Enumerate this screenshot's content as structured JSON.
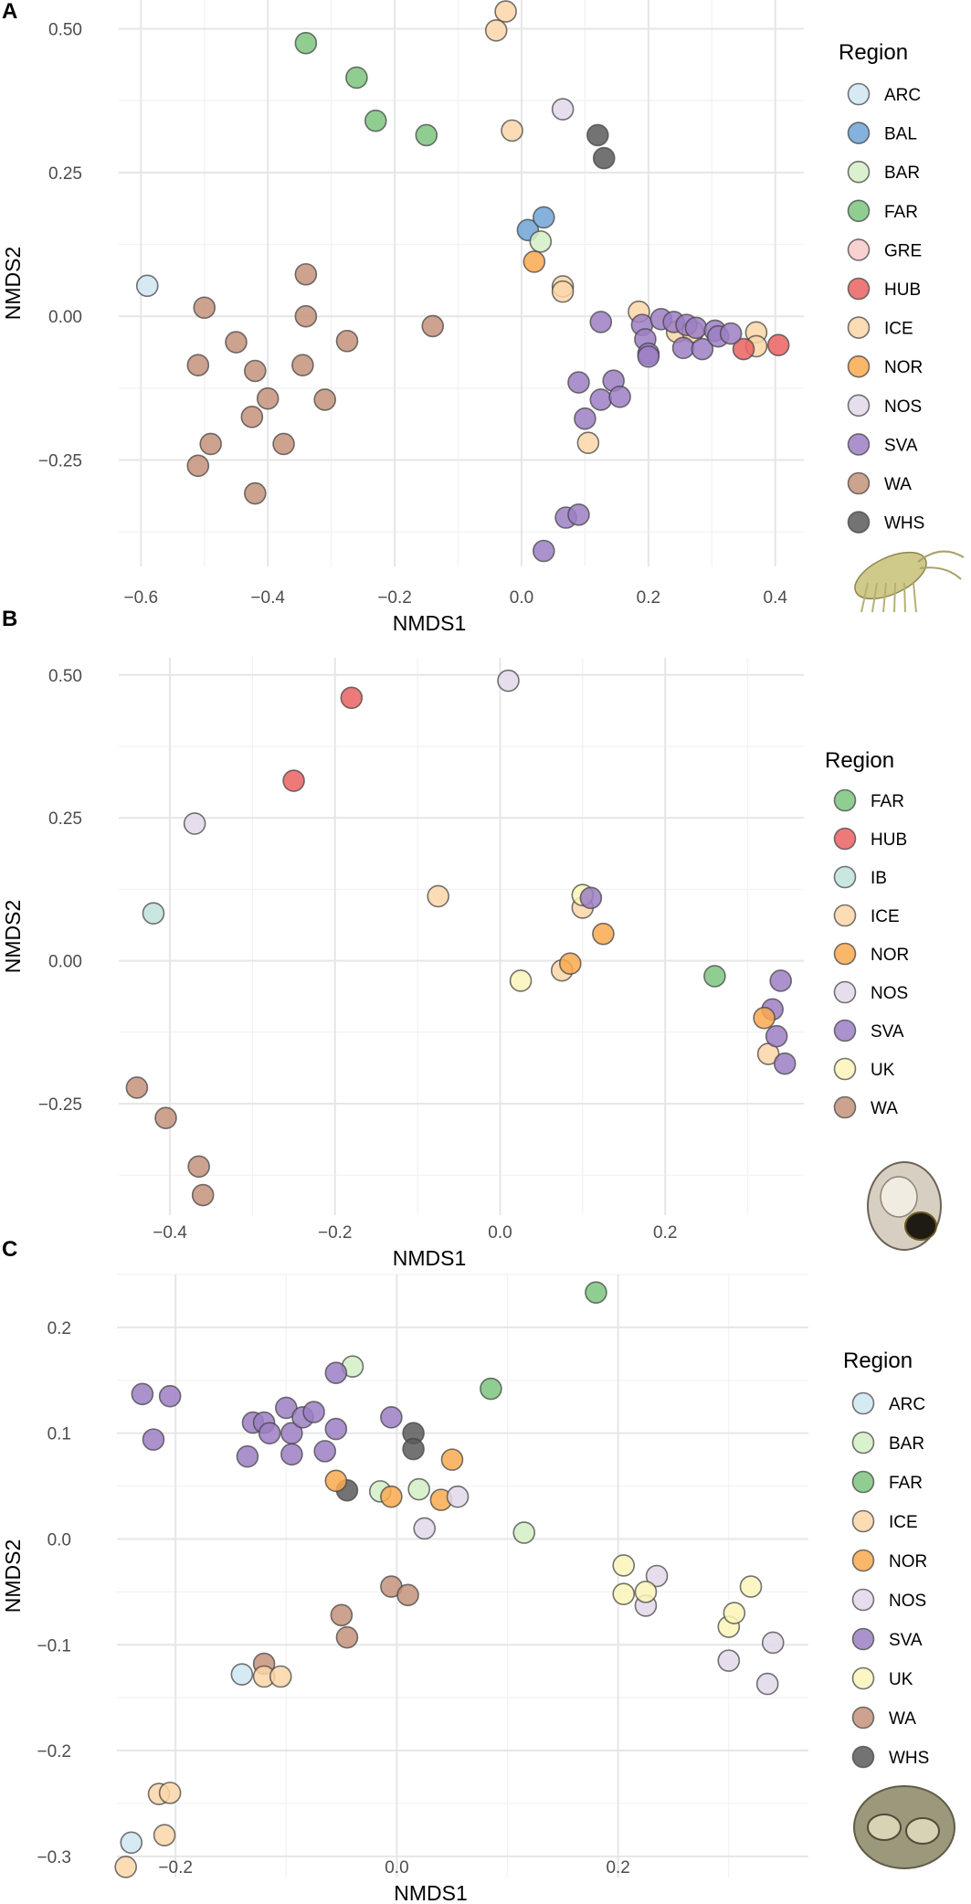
{
  "colors": {
    "ARC": "#cfe6f2",
    "BAL": "#6ea5d6",
    "BAR": "#d4efc5",
    "FAR": "#7cc47e",
    "GRE": "#f7c9c9",
    "HUB": "#ea6161",
    "ICE": "#fcd6a8",
    "NOR": "#f9a94f",
    "NOS": "#e3d8ea",
    "SVA": "#9c7fc4",
    "WA": "#c4927a",
    "WHS": "#5a5a5a",
    "IB": "#bfe3da",
    "UK": "#faf5b8"
  },
  "chart_data": [
    {
      "panel": "A",
      "type": "scatter",
      "xlabel": "NMDS1",
      "ylabel": "NMDS2",
      "xlim": [
        -0.635,
        0.445
      ],
      "ylim": [
        -0.435,
        0.55
      ],
      "xticks": [
        -0.6,
        -0.4,
        -0.2,
        0.0,
        0.2,
        0.4
      ],
      "xtick_labels": [
        "−0.6",
        "−0.4",
        "−0.2",
        "0.0",
        "0.2",
        "0.4"
      ],
      "yticks": [
        -0.25,
        0.0,
        0.25,
        0.5
      ],
      "ytick_labels": [
        "−0.25",
        "0.00",
        "0.25",
        "0.50"
      ],
      "legend_title": "Region",
      "legend": [
        "ARC",
        "BAL",
        "BAR",
        "FAR",
        "GRE",
        "HUB",
        "ICE",
        "NOR",
        "NOS",
        "SVA",
        "WA",
        "WHS"
      ],
      "image": "amphipod",
      "points": [
        {
          "region": "ARC",
          "x": -0.59,
          "y": 0.053
        },
        {
          "region": "FAR",
          "x": -0.34,
          "y": 0.475
        },
        {
          "region": "FAR",
          "x": -0.26,
          "y": 0.415
        },
        {
          "region": "FAR",
          "x": -0.23,
          "y": 0.34
        },
        {
          "region": "FAR",
          "x": -0.15,
          "y": 0.315
        },
        {
          "region": "ICE",
          "x": -0.025,
          "y": 0.53
        },
        {
          "region": "ICE",
          "x": -0.04,
          "y": 0.497
        },
        {
          "region": "ICE",
          "x": -0.015,
          "y": 0.323
        },
        {
          "region": "ICE",
          "x": 0.065,
          "y": 0.052
        },
        {
          "region": "ICE",
          "x": 0.065,
          "y": 0.043
        },
        {
          "region": "ICE",
          "x": 0.105,
          "y": -0.22
        },
        {
          "region": "ICE",
          "x": 0.185,
          "y": 0.008
        },
        {
          "region": "ICE",
          "x": 0.245,
          "y": -0.027
        },
        {
          "region": "ICE",
          "x": 0.27,
          "y": -0.027
        },
        {
          "region": "ICE",
          "x": 0.37,
          "y": -0.028
        },
        {
          "region": "ICE",
          "x": 0.37,
          "y": -0.052
        },
        {
          "region": "NOS",
          "x": 0.065,
          "y": 0.36
        },
        {
          "region": "WHS",
          "x": 0.12,
          "y": 0.315
        },
        {
          "region": "WHS",
          "x": 0.13,
          "y": 0.275
        },
        {
          "region": "BAL",
          "x": 0.01,
          "y": 0.15
        },
        {
          "region": "BAL",
          "x": 0.035,
          "y": 0.172
        },
        {
          "region": "BAR",
          "x": 0.03,
          "y": 0.13
        },
        {
          "region": "NOR",
          "x": 0.02,
          "y": 0.095
        },
        {
          "region": "HUB",
          "x": 0.35,
          "y": -0.057
        },
        {
          "region": "HUB",
          "x": 0.405,
          "y": -0.05
        },
        {
          "region": "SVA",
          "x": 0.125,
          "y": -0.01
        },
        {
          "region": "SVA",
          "x": 0.09,
          "y": -0.115
        },
        {
          "region": "SVA",
          "x": 0.125,
          "y": -0.145
        },
        {
          "region": "SVA",
          "x": 0.145,
          "y": -0.112
        },
        {
          "region": "SVA",
          "x": 0.155,
          "y": -0.14
        },
        {
          "region": "SVA",
          "x": 0.1,
          "y": -0.178
        },
        {
          "region": "SVA",
          "x": 0.07,
          "y": -0.35
        },
        {
          "region": "SVA",
          "x": 0.09,
          "y": -0.345
        },
        {
          "region": "SVA",
          "x": 0.035,
          "y": -0.408
        },
        {
          "region": "SVA",
          "x": 0.19,
          "y": -0.015
        },
        {
          "region": "SVA",
          "x": 0.195,
          "y": -0.04
        },
        {
          "region": "SVA",
          "x": 0.2,
          "y": -0.065
        },
        {
          "region": "SVA",
          "x": 0.2,
          "y": -0.07
        },
        {
          "region": "SVA",
          "x": 0.22,
          "y": -0.005
        },
        {
          "region": "SVA",
          "x": 0.24,
          "y": -0.01
        },
        {
          "region": "SVA",
          "x": 0.26,
          "y": -0.015
        },
        {
          "region": "SVA",
          "x": 0.275,
          "y": -0.02
        },
        {
          "region": "SVA",
          "x": 0.255,
          "y": -0.055
        },
        {
          "region": "SVA",
          "x": 0.285,
          "y": -0.057
        },
        {
          "region": "SVA",
          "x": 0.305,
          "y": -0.025
        },
        {
          "region": "SVA",
          "x": 0.31,
          "y": -0.035
        },
        {
          "region": "SVA",
          "x": 0.33,
          "y": -0.03
        },
        {
          "region": "WA",
          "x": -0.5,
          "y": 0.015
        },
        {
          "region": "WA",
          "x": -0.51,
          "y": -0.085
        },
        {
          "region": "WA",
          "x": -0.45,
          "y": -0.045
        },
        {
          "region": "WA",
          "x": -0.42,
          "y": -0.095
        },
        {
          "region": "WA",
          "x": -0.4,
          "y": -0.143
        },
        {
          "region": "WA",
          "x": -0.425,
          "y": -0.175
        },
        {
          "region": "WA",
          "x": -0.49,
          "y": -0.222
        },
        {
          "region": "WA",
          "x": -0.51,
          "y": -0.26
        },
        {
          "region": "WA",
          "x": -0.42,
          "y": -0.308
        },
        {
          "region": "WA",
          "x": -0.375,
          "y": -0.222
        },
        {
          "region": "WA",
          "x": -0.34,
          "y": 0.073
        },
        {
          "region": "WA",
          "x": -0.34,
          "y": 0.0
        },
        {
          "region": "WA",
          "x": -0.345,
          "y": -0.085
        },
        {
          "region": "WA",
          "x": -0.31,
          "y": -0.145
        },
        {
          "region": "WA",
          "x": -0.275,
          "y": -0.043
        },
        {
          "region": "WA",
          "x": -0.14,
          "y": -0.017
        }
      ]
    },
    {
      "panel": "B",
      "type": "scatter",
      "xlabel": "NMDS1",
      "ylabel": "NMDS2",
      "xlim": [
        -0.462,
        0.368
      ],
      "ylim": [
        -0.445,
        0.53
      ],
      "xticks": [
        -0.4,
        -0.2,
        0.0,
        0.2
      ],
      "xtick_labels": [
        "−0.4",
        "−0.2",
        "0.0",
        "0.2"
      ],
      "yticks": [
        -0.25,
        0.0,
        0.25,
        0.5
      ],
      "ytick_labels": [
        "−0.25",
        "0.00",
        "0.25",
        "0.50"
      ],
      "legend_title": "Region",
      "legend": [
        "FAR",
        "HUB",
        "IB",
        "ICE",
        "NOR",
        "NOS",
        "SVA",
        "UK",
        "WA"
      ],
      "image": "snail",
      "points": [
        {
          "region": "HUB",
          "x": -0.18,
          "y": 0.46
        },
        {
          "region": "HUB",
          "x": -0.25,
          "y": 0.315
        },
        {
          "region": "NOS",
          "x": 0.01,
          "y": 0.49
        },
        {
          "region": "NOS",
          "x": -0.37,
          "y": 0.24
        },
        {
          "region": "IB",
          "x": -0.42,
          "y": 0.083
        },
        {
          "region": "ICE",
          "x": -0.075,
          "y": 0.113
        },
        {
          "region": "ICE",
          "x": 0.1,
          "y": 0.093
        },
        {
          "region": "ICE",
          "x": 0.075,
          "y": -0.017
        },
        {
          "region": "ICE",
          "x": 0.325,
          "y": -0.163
        },
        {
          "region": "UK",
          "x": 0.1,
          "y": 0.115
        },
        {
          "region": "UK",
          "x": 0.025,
          "y": -0.035
        },
        {
          "region": "SVA",
          "x": 0.11,
          "y": 0.11
        },
        {
          "region": "SVA",
          "x": 0.34,
          "y": -0.035
        },
        {
          "region": "SVA",
          "x": 0.33,
          "y": -0.085
        },
        {
          "region": "SVA",
          "x": 0.335,
          "y": -0.132
        },
        {
          "region": "SVA",
          "x": 0.345,
          "y": -0.18
        },
        {
          "region": "NOR",
          "x": 0.125,
          "y": 0.047
        },
        {
          "region": "NOR",
          "x": 0.085,
          "y": -0.005
        },
        {
          "region": "NOR",
          "x": 0.32,
          "y": -0.1
        },
        {
          "region": "FAR",
          "x": 0.26,
          "y": -0.027
        },
        {
          "region": "WA",
          "x": -0.44,
          "y": -0.222
        },
        {
          "region": "WA",
          "x": -0.405,
          "y": -0.275
        },
        {
          "region": "WA",
          "x": -0.365,
          "y": -0.36
        },
        {
          "region": "WA",
          "x": -0.36,
          "y": -0.41
        }
      ]
    },
    {
      "panel": "C",
      "type": "scatter",
      "xlabel": "NMDS1",
      "ylabel": "NMDS2",
      "xlim": [
        -0.253,
        0.372
      ],
      "ylim": [
        -0.32,
        0.25
      ],
      "xticks": [
        -0.2,
        0.0,
        0.2
      ],
      "xtick_labels": [
        "−0.2",
        "0.0",
        "0.2"
      ],
      "yticks": [
        -0.3,
        -0.2,
        -0.1,
        0.0,
        0.1,
        0.2
      ],
      "ytick_labels": [
        "−0.3",
        "−0.2",
        "−0.1",
        "0.0",
        "0.1",
        "0.2"
      ],
      "legend_title": "Region",
      "legend": [
        "ARC",
        "BAR",
        "FAR",
        "ICE",
        "NOR",
        "NOS",
        "SVA",
        "UK",
        "WA",
        "WHS"
      ],
      "image": "barnacle",
      "points": [
        {
          "region": "FAR",
          "x": 0.18,
          "y": 0.233
        },
        {
          "region": "FAR",
          "x": 0.085,
          "y": 0.142
        },
        {
          "region": "BAR",
          "x": -0.04,
          "y": 0.163
        },
        {
          "region": "BAR",
          "x": -0.015,
          "y": 0.045
        },
        {
          "region": "BAR",
          "x": 0.02,
          "y": 0.047
        },
        {
          "region": "BAR",
          "x": 0.115,
          "y": 0.006
        },
        {
          "region": "SVA",
          "x": -0.23,
          "y": 0.137
        },
        {
          "region": "SVA",
          "x": -0.205,
          "y": 0.135
        },
        {
          "region": "SVA",
          "x": -0.22,
          "y": 0.094
        },
        {
          "region": "SVA",
          "x": -0.055,
          "y": 0.157
        },
        {
          "region": "SVA",
          "x": -0.13,
          "y": 0.11
        },
        {
          "region": "SVA",
          "x": -0.12,
          "y": 0.11
        },
        {
          "region": "SVA",
          "x": -0.115,
          "y": 0.1
        },
        {
          "region": "SVA",
          "x": -0.1,
          "y": 0.124
        },
        {
          "region": "SVA",
          "x": -0.095,
          "y": 0.1
        },
        {
          "region": "SVA",
          "x": -0.085,
          "y": 0.115
        },
        {
          "region": "SVA",
          "x": -0.075,
          "y": 0.12
        },
        {
          "region": "SVA",
          "x": -0.055,
          "y": 0.104
        },
        {
          "region": "SVA",
          "x": -0.135,
          "y": 0.078
        },
        {
          "region": "SVA",
          "x": -0.095,
          "y": 0.08
        },
        {
          "region": "SVA",
          "x": -0.065,
          "y": 0.083
        },
        {
          "region": "SVA",
          "x": -0.005,
          "y": 0.115
        },
        {
          "region": "WHS",
          "x": 0.015,
          "y": 0.1
        },
        {
          "region": "WHS",
          "x": 0.015,
          "y": 0.085
        },
        {
          "region": "WHS",
          "x": -0.045,
          "y": 0.046
        },
        {
          "region": "NOR",
          "x": -0.055,
          "y": 0.055
        },
        {
          "region": "NOR",
          "x": -0.005,
          "y": 0.04
        },
        {
          "region": "NOR",
          "x": 0.05,
          "y": 0.075
        },
        {
          "region": "NOR",
          "x": 0.04,
          "y": 0.037
        },
        {
          "region": "NOS",
          "x": 0.055,
          "y": 0.04
        },
        {
          "region": "NOS",
          "x": 0.025,
          "y": 0.01
        },
        {
          "region": "NOS",
          "x": 0.235,
          "y": -0.035
        },
        {
          "region": "NOS",
          "x": 0.225,
          "y": -0.063
        },
        {
          "region": "NOS",
          "x": 0.3,
          "y": -0.115
        },
        {
          "region": "NOS",
          "x": 0.34,
          "y": -0.098
        },
        {
          "region": "NOS",
          "x": 0.335,
          "y": -0.137
        },
        {
          "region": "UK",
          "x": 0.205,
          "y": -0.025
        },
        {
          "region": "UK",
          "x": 0.205,
          "y": -0.052
        },
        {
          "region": "UK",
          "x": 0.225,
          "y": -0.05
        },
        {
          "region": "UK",
          "x": 0.3,
          "y": -0.083
        },
        {
          "region": "UK",
          "x": 0.305,
          "y": -0.07
        },
        {
          "region": "UK",
          "x": 0.32,
          "y": -0.045
        },
        {
          "region": "WA",
          "x": -0.005,
          "y": -0.045
        },
        {
          "region": "WA",
          "x": 0.01,
          "y": -0.053
        },
        {
          "region": "WA",
          "x": -0.05,
          "y": -0.072
        },
        {
          "region": "WA",
          "x": -0.045,
          "y": -0.093
        },
        {
          "region": "WA",
          "x": -0.12,
          "y": -0.118
        },
        {
          "region": "ARC",
          "x": -0.14,
          "y": -0.128
        },
        {
          "region": "ARC",
          "x": -0.24,
          "y": -0.287
        },
        {
          "region": "ICE",
          "x": -0.12,
          "y": -0.13
        },
        {
          "region": "ICE",
          "x": -0.105,
          "y": -0.13
        },
        {
          "region": "ICE",
          "x": -0.215,
          "y": -0.241
        },
        {
          "region": "ICE",
          "x": -0.205,
          "y": -0.24
        },
        {
          "region": "ICE",
          "x": -0.21,
          "y": -0.28
        },
        {
          "region": "ICE",
          "x": -0.245,
          "y": -0.31
        }
      ]
    }
  ]
}
